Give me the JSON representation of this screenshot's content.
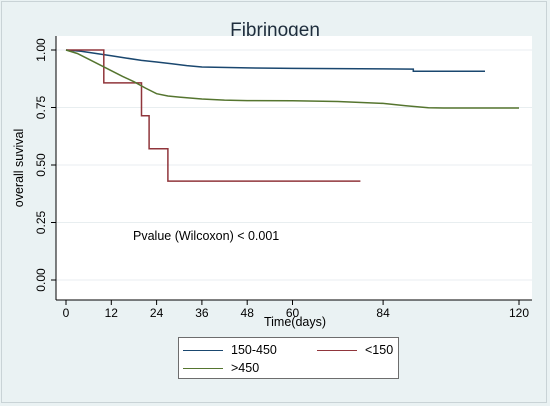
{
  "chart_data": {
    "type": "line",
    "title": "Fibrinogen",
    "xlabel": "Time(days)",
    "ylabel": "overall suvival",
    "xlim": [
      0,
      120
    ],
    "ylim": [
      0,
      1
    ],
    "xticks": [
      0,
      12,
      24,
      36,
      48,
      60,
      84,
      120
    ],
    "yticks": [
      0.0,
      0.25,
      0.5,
      0.75,
      1.0
    ],
    "ytick_labels": [
      "0.00",
      "0.25",
      "0.50",
      "0.75",
      "1.00"
    ],
    "grid": "horizontal",
    "annotation": "Pvalue (Wilcoxon) < 0.001",
    "legend_position": "bottom",
    "series": [
      {
        "name": "150-450",
        "color": "#1a476f",
        "points": [
          [
            0,
            1.0
          ],
          [
            4,
            0.995
          ],
          [
            8,
            0.985
          ],
          [
            12,
            0.975
          ],
          [
            16,
            0.965
          ],
          [
            20,
            0.955
          ],
          [
            24,
            0.948
          ],
          [
            28,
            0.94
          ],
          [
            32,
            0.932
          ],
          [
            36,
            0.926
          ],
          [
            48,
            0.922
          ],
          [
            60,
            0.92
          ],
          [
            72,
            0.919
          ],
          [
            84,
            0.918
          ],
          [
            92,
            0.917
          ],
          [
            92,
            0.908
          ],
          [
            111,
            0.908
          ]
        ]
      },
      {
        "name": "<150",
        "color": "#90353b",
        "points": [
          [
            0,
            1.0
          ],
          [
            10,
            1.0
          ],
          [
            10,
            0.857
          ],
          [
            20,
            0.857
          ],
          [
            20,
            0.714
          ],
          [
            22,
            0.714
          ],
          [
            22,
            0.571
          ],
          [
            27,
            0.571
          ],
          [
            27,
            0.43
          ],
          [
            78,
            0.43
          ]
        ]
      },
      {
        "name": ">450",
        "color": "#55752f",
        "points": [
          [
            0,
            1.0
          ],
          [
            3,
            0.985
          ],
          [
            6,
            0.96
          ],
          [
            9,
            0.935
          ],
          [
            12,
            0.91
          ],
          [
            15,
            0.885
          ],
          [
            18,
            0.862
          ],
          [
            21,
            0.835
          ],
          [
            24,
            0.81
          ],
          [
            27,
            0.8
          ],
          [
            30,
            0.795
          ],
          [
            36,
            0.787
          ],
          [
            42,
            0.782
          ],
          [
            48,
            0.78
          ],
          [
            60,
            0.779
          ],
          [
            72,
            0.776
          ],
          [
            84,
            0.768
          ],
          [
            90,
            0.758
          ],
          [
            96,
            0.749
          ],
          [
            100,
            0.748
          ],
          [
            120,
            0.748
          ]
        ]
      }
    ]
  }
}
